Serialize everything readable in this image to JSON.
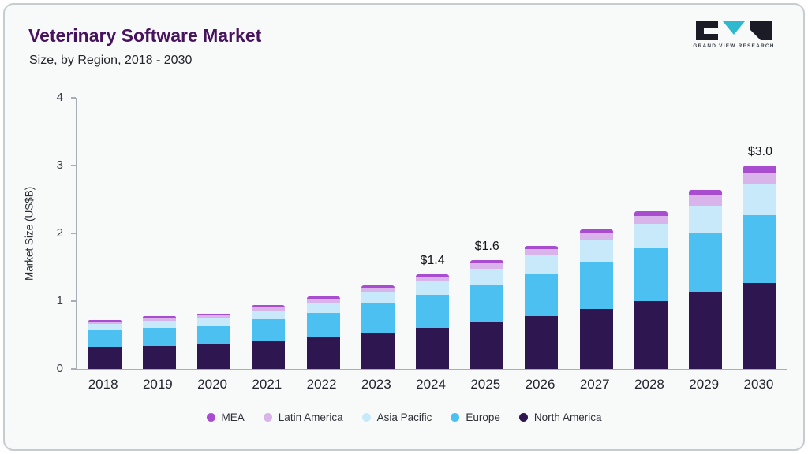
{
  "header": {
    "title": "Veterinary Software Market",
    "subtitle": "Size, by Region, 2018 - 2030"
  },
  "logo": {
    "text": "GRAND VIEW RESEARCH",
    "accent_color": "#2fb9cf",
    "mark_color": "#1b1b25"
  },
  "chart_data": {
    "type": "bar",
    "stacked": true,
    "title": "Veterinary Software Market Size, by Region, 2018 - 2030",
    "ylabel": "Market Size (US$B)",
    "ylim": [
      0,
      4
    ],
    "yticks": [
      0,
      1,
      2,
      3,
      4
    ],
    "grid": false,
    "legend_position": "bottom",
    "categories": [
      "2018",
      "2019",
      "2020",
      "2021",
      "2022",
      "2023",
      "2024",
      "2025",
      "2026",
      "2027",
      "2028",
      "2029",
      "2030"
    ],
    "series": [
      {
        "name": "North America",
        "color": "#2e1750",
        "values": [
          0.32,
          0.34,
          0.36,
          0.41,
          0.47,
          0.54,
          0.61,
          0.7,
          0.78,
          0.88,
          1.0,
          1.13,
          1.27
        ]
      },
      {
        "name": "Europe",
        "color": "#4cc1f1",
        "values": [
          0.25,
          0.27,
          0.27,
          0.32,
          0.36,
          0.42,
          0.48,
          0.54,
          0.62,
          0.7,
          0.78,
          0.88,
          1.0
        ]
      },
      {
        "name": "Asia Pacific",
        "color": "#c8e9fa",
        "values": [
          0.09,
          0.1,
          0.11,
          0.13,
          0.15,
          0.17,
          0.2,
          0.24,
          0.27,
          0.31,
          0.36,
          0.4,
          0.45
        ]
      },
      {
        "name": "Latin America",
        "color": "#d8b4ea",
        "values": [
          0.04,
          0.05,
          0.05,
          0.05,
          0.06,
          0.07,
          0.07,
          0.08,
          0.1,
          0.11,
          0.12,
          0.15,
          0.18
        ]
      },
      {
        "name": "MEA",
        "color": "#a84cd0",
        "values": [
          0.02,
          0.02,
          0.02,
          0.03,
          0.03,
          0.03,
          0.04,
          0.04,
          0.05,
          0.06,
          0.07,
          0.08,
          0.1
        ]
      }
    ],
    "totals": [
      0.72,
      0.78,
      0.81,
      0.94,
      1.07,
      1.23,
      1.4,
      1.6,
      1.82,
      2.06,
      2.33,
      2.64,
      3.0
    ],
    "annotations": [
      {
        "category": "2024",
        "text": "$1.4"
      },
      {
        "category": "2025",
        "text": "$1.6"
      },
      {
        "category": "2030",
        "text": "$3.0"
      }
    ]
  }
}
